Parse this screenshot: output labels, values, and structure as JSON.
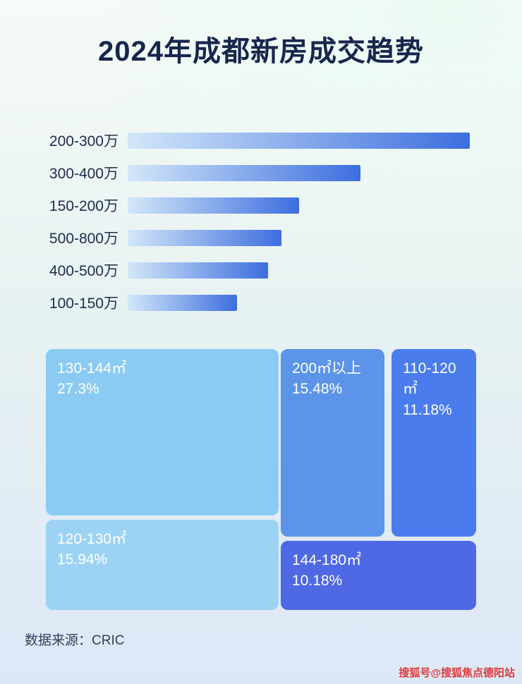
{
  "title": "2024年成都新房成交趋势",
  "chart_data": [
    {
      "type": "bar",
      "orientation": "horizontal",
      "title": "2024年成都新房成交趋势",
      "categories": [
        "200-300万",
        "300-400万",
        "150-200万",
        "500-800万",
        "400-500万",
        "100-150万"
      ],
      "values": [
        100,
        68,
        50,
        45,
        41,
        32
      ],
      "value_unit": "relative length, % of longest bar (no numeric labels shown)",
      "bar_gradient": [
        "#d3e7f9",
        "#3d6ede"
      ],
      "xlabel": "",
      "ylabel": ""
    },
    {
      "type": "treemap",
      "items": [
        {
          "label": "130-144㎡",
          "pct_label": "27.3%",
          "value": 27.3,
          "color": "#8bcbf3"
        },
        {
          "label": "120-130㎡",
          "pct_label": "15.94%",
          "value": 15.94,
          "color": "#9cd3f5"
        },
        {
          "label": "200㎡以上",
          "pct_label": "15.48%",
          "value": 15.48,
          "color": "#5b94e9"
        },
        {
          "label": "110-120㎡",
          "pct_label": "11.18%",
          "value": 11.18,
          "color": "#4b7cee"
        },
        {
          "label": "144-180㎡",
          "pct_label": "10.18%",
          "value": 10.18,
          "color": "#4f68e4"
        }
      ]
    }
  ],
  "footer": {
    "source": "数据来源：CRIC"
  },
  "watermark": "搜狐号@搜狐焦点德阳站",
  "colors": {
    "title_text": "#16264d",
    "bar_label_text": "#1d2c4e",
    "watermark_red": "#e03a3a"
  }
}
